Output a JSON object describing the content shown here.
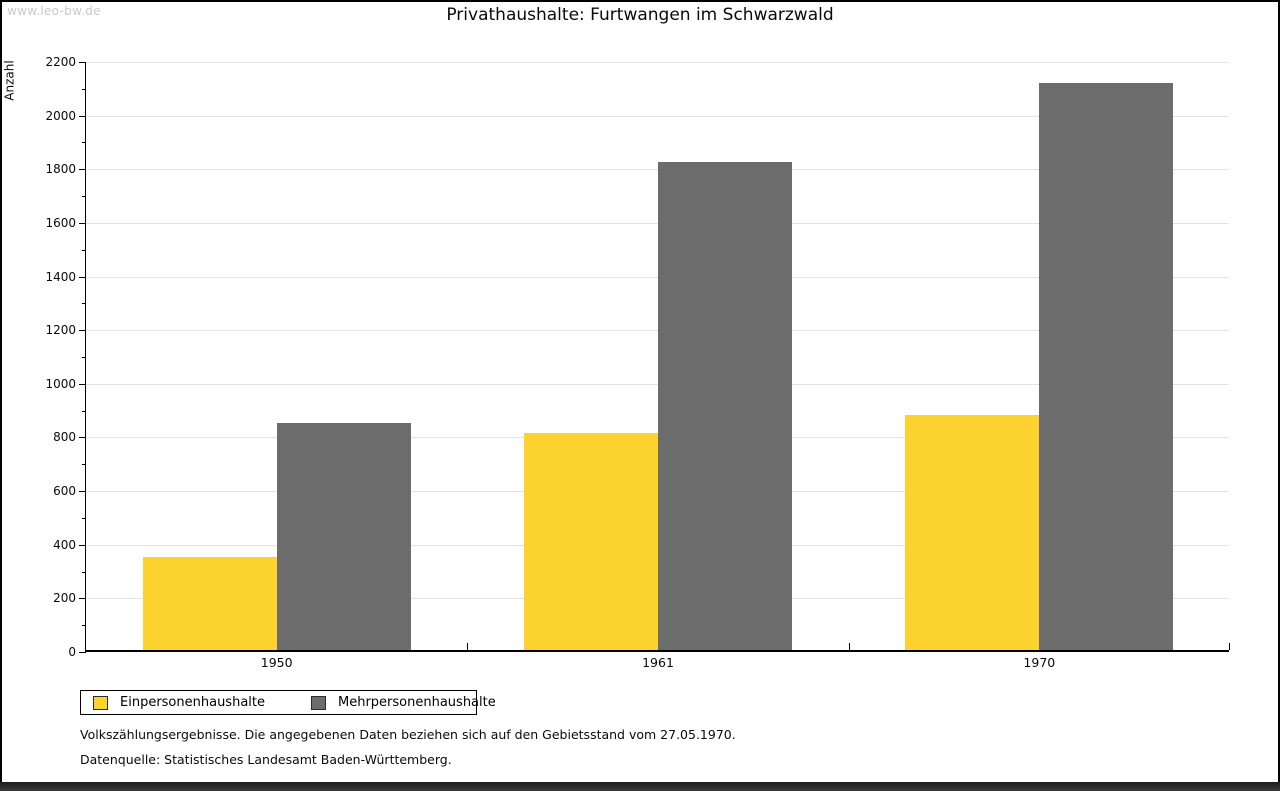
{
  "watermark": "www.leo-bw.de",
  "title": "Privathaushalte: Furtwangen im Schwarzwald",
  "chart_data": {
    "type": "bar",
    "title": "Privathaushalte: Furtwangen im Schwarzwald",
    "categories": [
      "1950",
      "1961",
      "1970"
    ],
    "series": [
      {
        "name": "Einpersonenhaushalte",
        "color": "#FCD32E",
        "values": [
          345,
          810,
          875
        ]
      },
      {
        "name": "Mehrpersonenhaushalte",
        "color": "#6C6C6C",
        "values": [
          845,
          1820,
          2115
        ]
      }
    ],
    "xlabel": "",
    "ylabel": "Anzahl",
    "ylim": [
      0,
      2200
    ],
    "ytick_step": 200,
    "yminor_step": 100,
    "grid": "horizontal-major",
    "legend_position": "bottom-left",
    "gridline_color": "#e3e3e3"
  },
  "footnotes": {
    "line1": "Volkszählungsergebnisse. Die angegebenen Daten beziehen sich auf den Gebietsstand vom 27.05.1970.",
    "line2": "Datenquelle: Statistisches Landesamt Baden-Württemberg."
  }
}
